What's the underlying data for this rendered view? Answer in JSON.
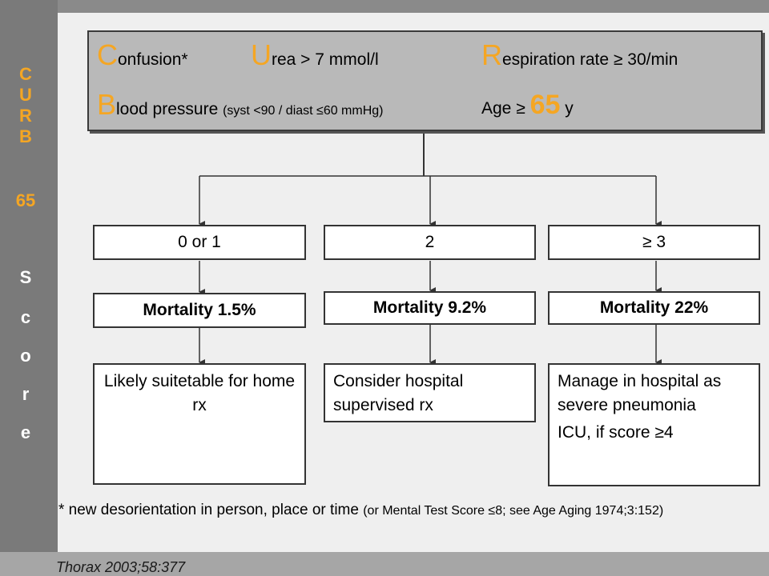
{
  "sidebar": {
    "letters": [
      "C",
      "U",
      "R",
      "B",
      "65",
      "S",
      "c",
      "o",
      "r",
      "e"
    ]
  },
  "criteria": {
    "confusion": {
      "initial": "C",
      "rest": "onfusion*"
    },
    "urea": {
      "initial": "U",
      "rest": "rea > 7 mmol/l"
    },
    "respiration": {
      "initial": "R",
      "rest": "espiration rate ≥ 30/min"
    },
    "blood_pressure": {
      "initial": "B",
      "rest": "lood pressure ",
      "detail": "(syst <90 / diast ≤60 mmHg)"
    },
    "age": {
      "prefix": "Age ≥ ",
      "value": "65",
      "suffix": " y"
    }
  },
  "columns": [
    {
      "score": "0 or 1",
      "mortality": "Mortality 1.5%",
      "recommendation": [
        "Likely suitetable for home rx"
      ]
    },
    {
      "score": "2",
      "mortality": "Mortality 9.2%",
      "recommendation": [
        "Consider hospital supervised rx"
      ]
    },
    {
      "score": "≥ 3",
      "mortality": "Mortality 22%",
      "recommendation": [
        "Manage in hospital as severe pneumonia",
        "ICU, if score ≥4"
      ]
    }
  ],
  "footnote": {
    "main": "* new desorientation in person, place or time ",
    "detail": "(or Mental Test Score ≤8; see Age Aging 1974;3:152)"
  },
  "source": "Thorax 2003;58:377",
  "colors": {
    "accent": "#f5a623",
    "sidebar": "#7a7a7a",
    "criteria_box": "#b9b9b9"
  }
}
